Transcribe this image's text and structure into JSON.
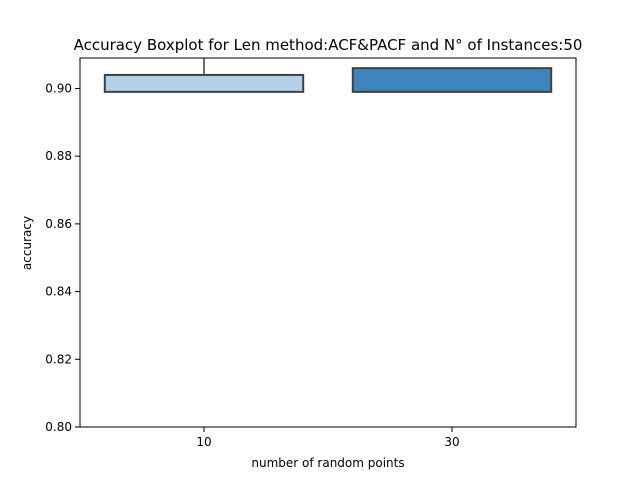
{
  "chart_data": {
    "type": "boxplot",
    "title": "Accuracy Boxplot for Len method:ACF&PACF and N° of Instances:50",
    "xlabel": "number of random points",
    "ylabel": "accuracy",
    "categories": [
      "10",
      "30"
    ],
    "boxes": [
      {
        "category": "10",
        "whisker_low": 0.899,
        "q1": 0.899,
        "median": 0.904,
        "q3": 0.904,
        "whisker_high": 0.91,
        "color": "#b3d1e6"
      },
      {
        "category": "30",
        "whisker_low": 0.899,
        "q1": 0.899,
        "median": 0.899,
        "q3": 0.906,
        "whisker_high": 0.906,
        "color": "#3f84bc"
      }
    ],
    "ylim": [
      0.8,
      0.909
    ],
    "yticks": [
      0.8,
      0.82,
      0.84,
      0.86,
      0.88,
      0.9
    ],
    "ytick_labels": [
      "0.80",
      "0.82",
      "0.84",
      "0.86",
      "0.88",
      "0.90"
    ],
    "grid": false,
    "legend": "none"
  }
}
